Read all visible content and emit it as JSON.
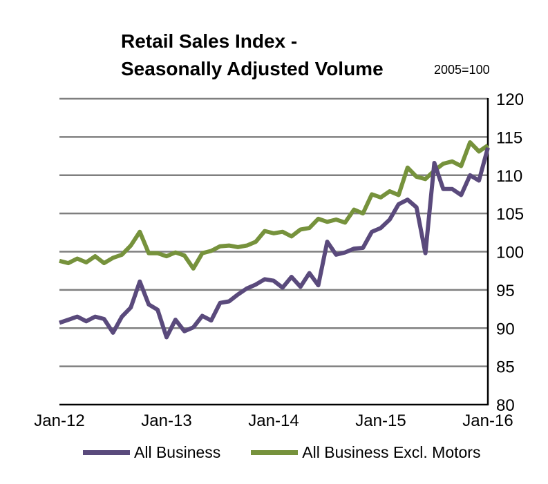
{
  "chart_data": {
    "type": "line",
    "title": "Retail Sales Index - Seasonally Adjusted Volume",
    "title_line1": "Retail Sales Index -",
    "title_line2": "Seasonally Adjusted Volume",
    "unit_label": "2005=100",
    "ylim": [
      80,
      120
    ],
    "y_ticks": [
      "120",
      "115",
      "110",
      "105",
      "100",
      "95",
      "90",
      "85",
      "80"
    ],
    "x_ticks": [
      "Jan-12",
      "Jan-13",
      "Jan-14",
      "Jan-15",
      "Jan-16"
    ],
    "grid": true,
    "y_axis_side": "right",
    "legend_position": "bottom",
    "x": [
      "Jan-12",
      "Feb-12",
      "Mar-12",
      "Apr-12",
      "May-12",
      "Jun-12",
      "Jul-12",
      "Aug-12",
      "Sep-12",
      "Oct-12",
      "Nov-12",
      "Dec-12",
      "Jan-13",
      "Feb-13",
      "Mar-13",
      "Apr-13",
      "May-13",
      "Jun-13",
      "Jul-13",
      "Aug-13",
      "Sep-13",
      "Oct-13",
      "Nov-13",
      "Dec-13",
      "Jan-14",
      "Feb-14",
      "Mar-14",
      "Apr-14",
      "May-14",
      "Jun-14",
      "Jul-14",
      "Aug-14",
      "Sep-14",
      "Oct-14",
      "Nov-14",
      "Dec-14",
      "Jan-15",
      "Feb-15",
      "Mar-15",
      "Apr-15",
      "May-15",
      "Jun-15",
      "Jul-15",
      "Aug-15",
      "Sep-15",
      "Oct-15",
      "Nov-15",
      "Dec-15",
      "Jan-16"
    ],
    "series": [
      {
        "name": "All Business",
        "color": "#5a4a7c",
        "values": [
          90.7,
          91.1,
          91.5,
          90.9,
          91.5,
          91.2,
          89.4,
          91.5,
          92.7,
          96.1,
          93.1,
          92.4,
          88.8,
          91.1,
          89.6,
          90.1,
          91.6,
          91.0,
          93.3,
          93.5,
          94.4,
          95.2,
          95.7,
          96.4,
          96.2,
          95.3,
          96.7,
          95.4,
          97.2,
          95.6,
          101.3,
          99.6,
          99.9,
          100.4,
          100.5,
          102.6,
          103.1,
          104.2,
          106.2,
          106.8,
          105.8,
          99.8,
          111.6,
          108.2,
          108.2,
          107.4,
          110.0,
          109.3,
          113.6
        ]
      },
      {
        "name": "All Business Excl. Motors",
        "color": "#76923c",
        "values": [
          98.8,
          98.5,
          99.1,
          98.6,
          99.4,
          98.5,
          99.2,
          99.6,
          100.8,
          102.6,
          99.8,
          99.8,
          99.4,
          99.9,
          99.5,
          97.8,
          99.8,
          100.1,
          100.7,
          100.8,
          100.6,
          100.8,
          101.3,
          102.7,
          102.4,
          102.6,
          102.0,
          102.9,
          103.1,
          104.3,
          103.9,
          104.2,
          103.8,
          105.5,
          105.0,
          107.5,
          107.1,
          107.9,
          107.4,
          111.0,
          109.8,
          109.5,
          110.6,
          111.5,
          111.8,
          111.2,
          114.3,
          113.1,
          113.9
        ]
      }
    ]
  }
}
